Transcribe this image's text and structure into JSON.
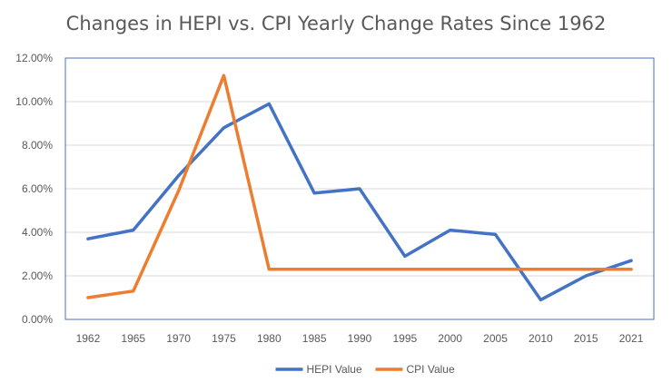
{
  "chart_data": {
    "type": "line",
    "title": "Changes in HEPI vs. CPI Yearly Change Rates Since 1962",
    "categories": [
      "1962",
      "1965",
      "1970",
      "1975",
      "1980",
      "1985",
      "1990",
      "1995",
      "2000",
      "2005",
      "2010",
      "2015",
      "2021"
    ],
    "series": [
      {
        "name": "HEPI Value",
        "color": "#4472C4",
        "values": [
          3.7,
          4.1,
          6.6,
          8.8,
          9.9,
          5.8,
          6.0,
          2.9,
          4.1,
          3.9,
          0.9,
          2.0,
          2.7
        ]
      },
      {
        "name": "CPI Value",
        "color": "#ED7D31",
        "values": [
          1.0,
          1.3,
          5.9,
          11.2,
          2.3,
          2.3,
          2.3,
          2.3,
          2.3,
          2.3,
          2.3,
          2.3,
          2.3
        ]
      }
    ],
    "yticks": [
      "0.00%",
      "2.00%",
      "4.00%",
      "6.00%",
      "8.00%",
      "10.00%",
      "12.00%"
    ],
    "ylim": [
      0,
      12
    ],
    "grid": true,
    "legend_position": "bottom",
    "plot_border_color": "#4472C4",
    "grid_color": "#D9D9D9"
  }
}
